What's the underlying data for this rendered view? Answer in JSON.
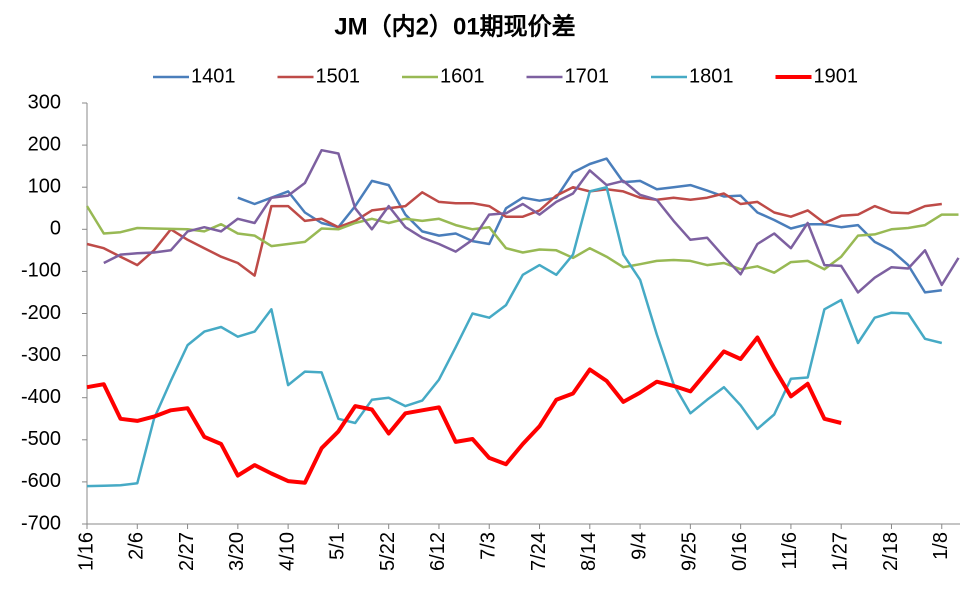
{
  "chart_data": {
    "type": "line",
    "title": "JM（内2）01期现价差",
    "categories": [
      "1/16",
      null,
      null,
      "2/6",
      null,
      null,
      "2/27",
      null,
      null,
      "3/20",
      null,
      null,
      "4/10",
      null,
      null,
      "5/1",
      null,
      null,
      "5/22",
      null,
      null,
      "6/12",
      null,
      null,
      "7/3",
      null,
      null,
      "7/24",
      null,
      null,
      "8/14",
      null,
      null,
      "9/4",
      null,
      null,
      "9/25",
      null,
      null,
      "0/16",
      null,
      null,
      "11/6",
      null,
      null,
      "1/27",
      null,
      null,
      "2/18",
      null,
      null,
      "1/8",
      null
    ],
    "ylim": [
      -700,
      300
    ],
    "yticks": [
      -700,
      -600,
      -500,
      -400,
      -300,
      -200,
      -100,
      0,
      100,
      200,
      300
    ],
    "legend": "top",
    "series": [
      {
        "name": "1401",
        "color": "#4a7ebb",
        "values": [
          null,
          null,
          null,
          null,
          null,
          null,
          null,
          null,
          null,
          75,
          60,
          75,
          90,
          40,
          15,
          5,
          55,
          115,
          105,
          35,
          -5,
          -15,
          -10,
          -28,
          -35,
          50,
          75,
          68,
          75,
          135,
          155,
          168,
          112,
          115,
          95,
          100,
          105,
          92,
          78,
          80,
          40,
          22,
          2,
          12,
          12,
          5,
          10,
          -30,
          -50,
          -85,
          -150,
          -145,
          null
        ]
      },
      {
        "name": "1501",
        "color": "#be4b48",
        "values": [
          -35,
          -45,
          -65,
          -85,
          -50,
          0,
          -25,
          -45,
          -65,
          -80,
          -110,
          55,
          55,
          20,
          25,
          5,
          20,
          45,
          50,
          55,
          88,
          65,
          62,
          62,
          55,
          30,
          30,
          45,
          80,
          100,
          90,
          95,
          90,
          75,
          70,
          75,
          70,
          75,
          85,
          60,
          65,
          40,
          30,
          45,
          15,
          32,
          35,
          55,
          40,
          38,
          55,
          60,
          null
        ]
      },
      {
        "name": "1601",
        "color": "#98b954",
        "values": [
          55,
          -10,
          -7,
          3,
          2,
          1,
          0,
          -5,
          12,
          -10,
          -15,
          -40,
          -35,
          -30,
          2,
          0,
          15,
          25,
          15,
          25,
          20,
          25,
          10,
          0,
          5,
          -45,
          -55,
          -48,
          -50,
          -68,
          -45,
          -65,
          -90,
          -83,
          -75,
          -73,
          -75,
          -85,
          -80,
          -95,
          -88,
          -103,
          -78,
          -75,
          -95,
          -65,
          -15,
          -12,
          0,
          3,
          10,
          35,
          35
        ]
      },
      {
        "name": "1701",
        "color": "#7d60a0",
        "values": [
          null,
          -80,
          -60,
          -57,
          -55,
          -50,
          -5,
          5,
          -5,
          25,
          15,
          75,
          80,
          110,
          188,
          180,
          50,
          0,
          55,
          5,
          -20,
          -35,
          -53,
          -25,
          35,
          38,
          60,
          35,
          65,
          85,
          140,
          105,
          115,
          82,
          70,
          20,
          -25,
          -20,
          -65,
          -107,
          -35,
          -10,
          -45,
          15,
          -85,
          -87,
          -150,
          -115,
          -90,
          -93,
          -50,
          -132,
          -68
        ]
      },
      {
        "name": "1801",
        "color": "#46aac5",
        "values": [
          -610,
          -609,
          -608,
          -603,
          -450,
          -360,
          -275,
          -243,
          -232,
          -255,
          -243,
          -190,
          -370,
          -338,
          -340,
          -450,
          -460,
          -405,
          -400,
          -420,
          -407,
          -357,
          -280,
          -200,
          -210,
          -180,
          -108,
          -85,
          -108,
          -60,
          90,
          100,
          -60,
          -120,
          -250,
          -368,
          -437,
          -405,
          -375,
          -418,
          -474,
          -440,
          -355,
          -352,
          -190,
          -168,
          -270,
          -210,
          -198,
          -200,
          -260,
          -270,
          null
        ]
      },
      {
        "name": "1901",
        "color": "#ff0000",
        "values": [
          -375,
          -368,
          -450,
          -455,
          -445,
          -430,
          -425,
          -493,
          -510,
          -585,
          -560,
          -580,
          -598,
          -602,
          -520,
          -480,
          -420,
          -428,
          -485,
          -437,
          -430,
          -423,
          -505,
          -498,
          -543,
          -558,
          -510,
          -468,
          -405,
          -390,
          -333,
          -360,
          -410,
          -388,
          -362,
          -372,
          -385,
          -338,
          -290,
          -308,
          -257,
          -330,
          -397,
          -367,
          -450,
          -460,
          null,
          null,
          null,
          null,
          null,
          null,
          null
        ]
      }
    ]
  }
}
